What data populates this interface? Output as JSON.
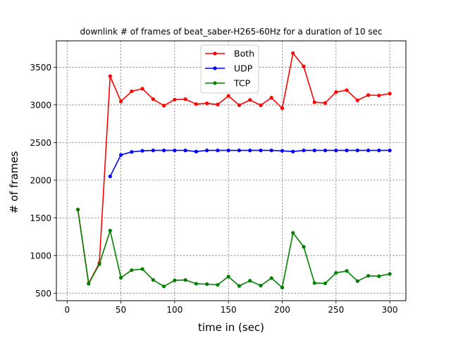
{
  "chart_data": {
    "type": "line",
    "title": "downlink # of frames of beat_saber-H265-60Hz for a duration of 10 sec",
    "xlabel": "time in (sec)",
    "ylabel": "# of frames",
    "xlim": [
      -10,
      315
    ],
    "ylim": [
      400,
      3850
    ],
    "xticks": [
      "0",
      "50",
      "100",
      "150",
      "200",
      "250",
      "300"
    ],
    "yticks": [
      "500",
      "1000",
      "1500",
      "2000",
      "2500",
      "3000",
      "3500"
    ],
    "grid": true,
    "legend_position": "top-center",
    "series": [
      {
        "name": "Both",
        "color": "#ff0000",
        "x": [
          10,
          20,
          30,
          40,
          50,
          60,
          70,
          80,
          90,
          100,
          110,
          120,
          130,
          140,
          150,
          160,
          170,
          180,
          190,
          200,
          210,
          220,
          230,
          240,
          250,
          260,
          270,
          280,
          290,
          300
        ],
        "y": [
          1610,
          630,
          900,
          3380,
          3045,
          3180,
          3215,
          3075,
          2990,
          3070,
          3075,
          3010,
          3020,
          3005,
          3120,
          2995,
          3065,
          2995,
          3095,
          2955,
          3685,
          3510,
          3035,
          3025,
          3170,
          3195,
          3060,
          3130,
          3125,
          3150
        ]
      },
      {
        "name": "UDP",
        "color": "#0000ff",
        "x": [
          40,
          50,
          60,
          70,
          80,
          90,
          100,
          110,
          120,
          130,
          140,
          150,
          160,
          170,
          180,
          190,
          200,
          210,
          220,
          230,
          240,
          250,
          260,
          270,
          280,
          290,
          300
        ],
        "y": [
          2050,
          2335,
          2375,
          2390,
          2395,
          2395,
          2395,
          2395,
          2380,
          2395,
          2395,
          2395,
          2395,
          2395,
          2395,
          2395,
          2390,
          2380,
          2395,
          2395,
          2395,
          2395,
          2395,
          2395,
          2395,
          2395,
          2395
        ]
      },
      {
        "name": "TCP",
        "color": "#008000",
        "x": [
          10,
          20,
          30,
          40,
          50,
          60,
          70,
          80,
          90,
          100,
          110,
          120,
          130,
          140,
          150,
          160,
          170,
          180,
          190,
          200,
          210,
          220,
          230,
          240,
          250,
          260,
          270,
          280,
          290,
          300
        ],
        "y": [
          1610,
          625,
          885,
          1330,
          705,
          805,
          820,
          675,
          590,
          670,
          675,
          625,
          620,
          610,
          720,
          595,
          665,
          600,
          700,
          575,
          1300,
          1115,
          635,
          630,
          770,
          795,
          660,
          730,
          725,
          755
        ]
      }
    ]
  }
}
